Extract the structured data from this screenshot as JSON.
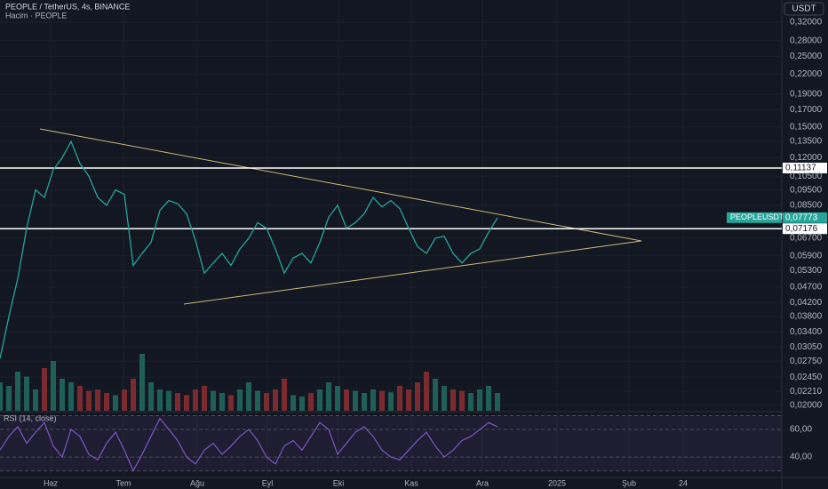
{
  "chart_data": {
    "type": "line",
    "title": "PEOPLE / TetherUS, 4s, BINANCE",
    "subtitle": "Hacim · PEOPLE",
    "currency": "USDT",
    "symbol": "PEOPLEUSDT",
    "color": "#26a69a",
    "log_scale": true,
    "grid": true,
    "xlim": [
      0,
      88
    ],
    "xticks": [
      {
        "value": 5.7,
        "label": "Haz"
      },
      {
        "value": 13.9,
        "label": "Tem"
      },
      {
        "value": 22.2,
        "label": "Ağu"
      },
      {
        "value": 30.1,
        "label": "Eyl"
      },
      {
        "value": 38.1,
        "label": "Eki"
      },
      {
        "value": 46.3,
        "label": "Kas"
      },
      {
        "value": 54.3,
        "label": "Ara"
      },
      {
        "value": 62.7,
        "label": "2025"
      },
      {
        "value": 70.8,
        "label": "Şub"
      },
      {
        "value": 76.9,
        "label": "24"
      }
    ],
    "ylim": [
      0.0192,
      0.376
    ],
    "yticks": [
      {
        "value": 0.32,
        "label": "0,32000"
      },
      {
        "value": 0.28,
        "label": "0,28000"
      },
      {
        "value": 0.25,
        "label": "0,25000"
      },
      {
        "value": 0.22,
        "label": "0,22000"
      },
      {
        "value": 0.19,
        "label": "0,19000"
      },
      {
        "value": 0.17,
        "label": "0,17000"
      },
      {
        "value": 0.15,
        "label": "0,15000"
      },
      {
        "value": 0.135,
        "label": "0,13500"
      },
      {
        "value": 0.12,
        "label": "0,12000"
      },
      {
        "value": 0.105,
        "label": "0,10500"
      },
      {
        "value": 0.095,
        "label": "0,09500"
      },
      {
        "value": 0.085,
        "label": "0,08500"
      },
      {
        "value": 0.067,
        "label": "0,06700"
      },
      {
        "value": 0.059,
        "label": "0,05900"
      },
      {
        "value": 0.053,
        "label": "0,05300"
      },
      {
        "value": 0.047,
        "label": "0,04700"
      },
      {
        "value": 0.042,
        "label": "0,04200"
      },
      {
        "value": 0.038,
        "label": "0,03800"
      },
      {
        "value": 0.034,
        "label": "0,03400"
      },
      {
        "value": 0.0305,
        "label": "0,03050"
      },
      {
        "value": 0.0275,
        "label": "0,02750"
      },
      {
        "value": 0.0245,
        "label": "0,02450"
      },
      {
        "value": 0.0221,
        "label": "0,02210"
      },
      {
        "value": 0.02,
        "label": "0,02000"
      }
    ],
    "x": [
      0,
      1,
      2,
      3,
      4,
      5,
      6,
      7,
      8,
      9,
      10,
      11,
      12,
      13,
      14,
      15,
      16,
      17,
      18,
      19,
      20,
      21,
      22,
      23,
      24,
      25,
      26,
      27,
      28,
      29,
      30,
      31,
      32,
      33,
      34,
      35,
      36,
      37,
      38,
      39,
      40,
      41,
      42,
      43,
      44,
      45,
      46,
      47,
      48,
      49,
      50,
      51,
      52,
      53,
      54,
      55,
      56
    ],
    "values": [
      0.028,
      0.038,
      0.05,
      0.072,
      0.095,
      0.09,
      0.11,
      0.12,
      0.135,
      0.115,
      0.105,
      0.09,
      0.085,
      0.095,
      0.092,
      0.055,
      0.06,
      0.065,
      0.082,
      0.088,
      0.086,
      0.08,
      0.066,
      0.052,
      0.056,
      0.06,
      0.055,
      0.062,
      0.067,
      0.075,
      0.072,
      0.062,
      0.052,
      0.058,
      0.06,
      0.056,
      0.065,
      0.078,
      0.085,
      0.072,
      0.075,
      0.08,
      0.09,
      0.084,
      0.088,
      0.083,
      0.072,
      0.063,
      0.06,
      0.067,
      0.068,
      0.06,
      0.056,
      0.06,
      0.062,
      0.07,
      0.0777
    ],
    "levels": [
      {
        "value": 0.11137,
        "label": "0,11137"
      },
      {
        "value": 0.07176,
        "label": "0,07176"
      }
    ],
    "last_price": {
      "value": 0.07773,
      "label": "0,07773"
    },
    "volume": {
      "ylim": [
        0,
        100
      ],
      "up_color": "#1f5f57",
      "down_color": "#7a2b2f",
      "values": [
        40,
        35,
        55,
        48,
        30,
        60,
        70,
        45,
        40,
        35,
        28,
        30,
        25,
        22,
        30,
        45,
        80,
        40,
        30,
        28,
        25,
        22,
        30,
        35,
        28,
        25,
        22,
        30,
        40,
        28,
        25,
        30,
        45,
        22,
        20,
        25,
        30,
        40,
        35,
        30,
        28,
        25,
        30,
        28,
        26,
        35,
        30,
        40,
        55,
        45,
        35,
        30,
        28,
        25,
        30,
        35,
        25
      ]
    },
    "rsi": {
      "title": "RSI (14, close)",
      "color": "#7e57c2",
      "ylim": [
        26.5,
        71
      ],
      "band": [
        30,
        70
      ],
      "yticks": [
        {
          "value": 60,
          "label": "60,00"
        },
        {
          "value": 40,
          "label": "40,00"
        }
      ],
      "values": [
        45,
        55,
        62,
        50,
        58,
        65,
        48,
        40,
        60,
        55,
        42,
        38,
        50,
        58,
        45,
        30,
        42,
        55,
        68,
        60,
        52,
        40,
        35,
        45,
        50,
        42,
        48,
        55,
        60,
        52,
        40,
        35,
        48,
        52,
        45,
        55,
        65,
        60,
        42,
        50,
        58,
        62,
        55,
        45,
        40,
        38,
        45,
        52,
        58,
        48,
        40,
        45,
        52,
        55,
        60,
        65,
        62
      ]
    }
  }
}
